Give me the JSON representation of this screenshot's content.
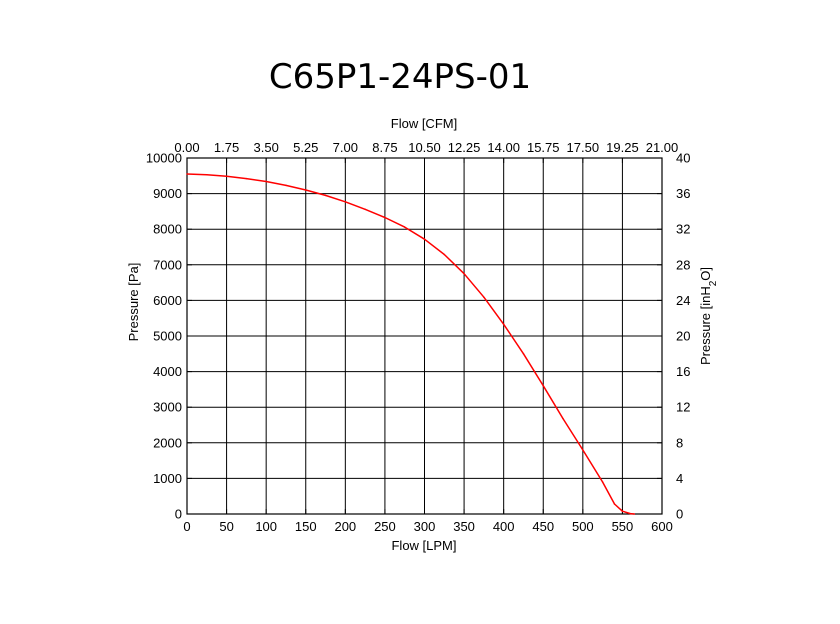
{
  "chart_data": {
    "type": "line",
    "title": "C65P1-24PS-01",
    "xlabel": "Flow [LPM]",
    "x2label": "Flow [CFM]",
    "ylabel": "Pressure [Pa]",
    "y2label_parts": [
      "Pressure [inH",
      "2",
      "O]"
    ],
    "xlim": [
      0,
      600
    ],
    "ylim": [
      0,
      10000
    ],
    "x2lim": [
      0,
      21
    ],
    "y2lim": [
      0,
      40
    ],
    "x_ticks": [
      "0",
      "50",
      "100",
      "150",
      "200",
      "250",
      "300",
      "350",
      "400",
      "450",
      "500",
      "550",
      "600"
    ],
    "x2_ticks": [
      "0.00",
      "1.75",
      "3.50",
      "5.25",
      "7.00",
      "8.75",
      "10.50",
      "12.25",
      "14.00",
      "15.75",
      "17.50",
      "19.25",
      "21.00"
    ],
    "y_ticks": [
      "0",
      "1000",
      "2000",
      "3000",
      "4000",
      "5000",
      "6000",
      "7000",
      "8000",
      "9000",
      "10000"
    ],
    "y2_ticks": [
      "0",
      "4",
      "8",
      "12",
      "16",
      "20",
      "24",
      "28",
      "32",
      "36",
      "40"
    ],
    "grid": "vertical",
    "line_color": "#ff0000",
    "series": [
      {
        "x": [
          0,
          25,
          50,
          75,
          100,
          125,
          150,
          175,
          200,
          225,
          250,
          275,
          300,
          325,
          350,
          375,
          400,
          425,
          450,
          475,
          500,
          525,
          540,
          550,
          560,
          565
        ],
        "values": [
          9550,
          9530,
          9490,
          9420,
          9340,
          9230,
          9100,
          8950,
          8770,
          8560,
          8330,
          8060,
          7720,
          7290,
          6750,
          6090,
          5330,
          4500,
          3600,
          2680,
          1800,
          900,
          280,
          80,
          10,
          0
        ]
      }
    ]
  }
}
